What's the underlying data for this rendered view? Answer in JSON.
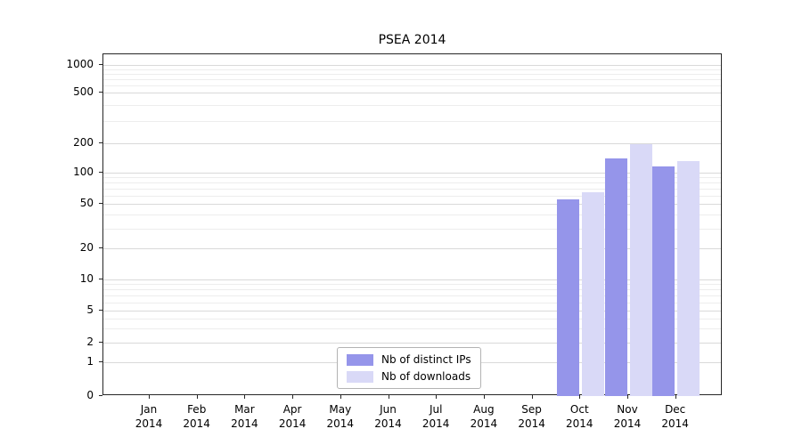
{
  "chart_data": {
    "type": "bar",
    "title": "PSEA 2014",
    "categories": [
      "Jan 2014",
      "Feb 2014",
      "Mar 2014",
      "Apr 2014",
      "May 2014",
      "Jun 2014",
      "Jul 2014",
      "Aug 2014",
      "Sep 2014",
      "Oct 2014",
      "Nov 2014",
      "Dec 2014"
    ],
    "series": [
      {
        "name": "Nb of distinct IPs",
        "color": "#9595ea",
        "values": [
          0,
          0,
          0,
          0,
          0,
          0,
          0,
          0,
          0,
          55,
          140,
          115
        ]
      },
      {
        "name": "Nb of downloads",
        "color": "#d9d9f7",
        "values": [
          0,
          0,
          0,
          0,
          0,
          0,
          0,
          0,
          0,
          65,
          195,
          132
        ]
      }
    ],
    "yscale": "symlog",
    "yticks": [
      0,
      1,
      2,
      5,
      10,
      20,
      50,
      100,
      200,
      500,
      1000
    ],
    "ylim": [
      0,
      1400
    ],
    "grid": "horizontal",
    "legend_position": "bottom-center",
    "xlabel": "",
    "ylabel": ""
  }
}
